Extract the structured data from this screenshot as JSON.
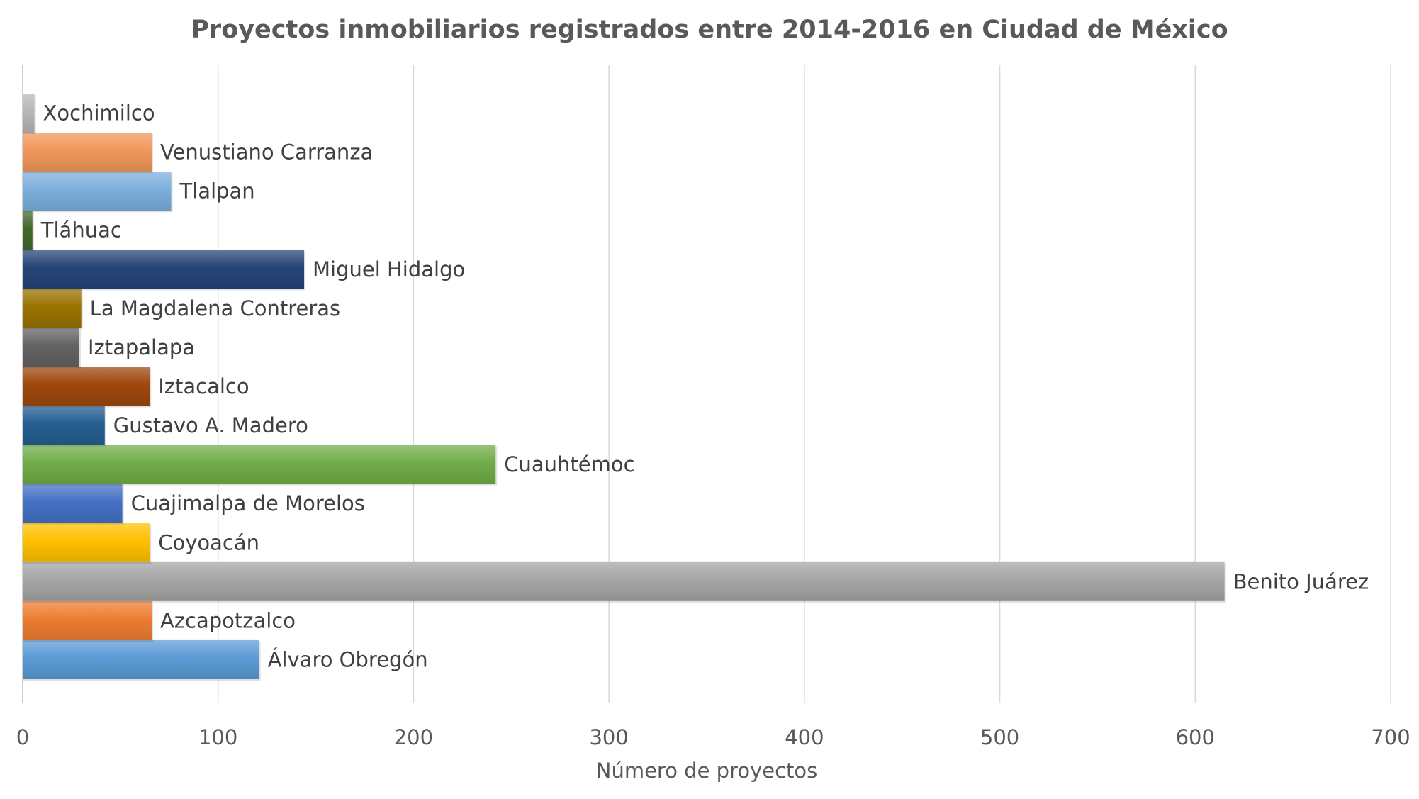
{
  "chart_data": {
    "type": "bar",
    "orientation": "horizontal",
    "title": "Proyectos inmobiliarios registrados entre 2014-2016 en Ciudad de México",
    "xlabel": "Número de proyectos",
    "ylabel": "",
    "xlim": [
      0,
      700
    ],
    "xticks": [
      0,
      100,
      200,
      300,
      400,
      500,
      600,
      700
    ],
    "grid": true,
    "legend": "none",
    "categories": [
      "Álvaro Obregón",
      "Azcapotzalco",
      "Benito Juárez",
      "Coyoacán",
      "Cuajimalpa de Morelos",
      "Cuauhtémoc",
      "Gustavo A. Madero",
      "Iztacalco",
      "Iztapalapa",
      "La Magdalena Contreras",
      "Miguel Hidalgo",
      "Tláhuac",
      "Tlalpan",
      "Venustiano Carranza",
      "Xochimilco"
    ],
    "values": [
      121,
      66,
      615,
      65,
      51,
      242,
      42,
      65,
      29,
      30,
      144,
      5,
      76,
      66,
      6
    ],
    "colors": [
      "#5b9bd5",
      "#ed7d31",
      "#a5a5a5",
      "#ffc000",
      "#4472c4",
      "#70ad47",
      "#255e91",
      "#9e480e",
      "#636363",
      "#997300",
      "#264478",
      "#43682b",
      "#7cafdd",
      "#f1975a",
      "#b7b7b7"
    ]
  }
}
